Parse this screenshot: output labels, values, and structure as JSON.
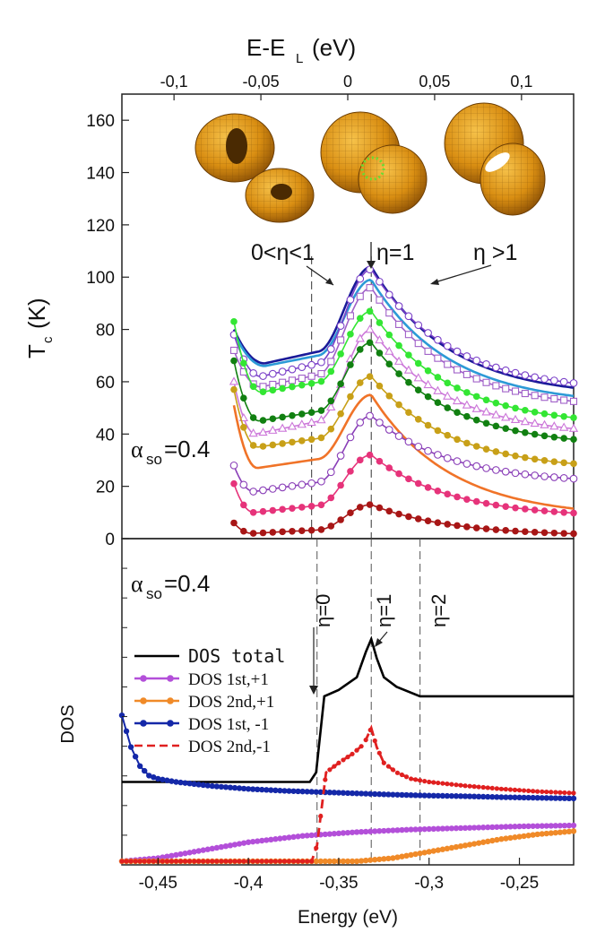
{
  "figure": {
    "top_axis_title": "E-E",
    "top_axis_title_sub": "L",
    "top_axis_title_unit": "(eV)",
    "top_ticks": [
      "-0,1",
      "-0,05",
      "0",
      "0,05",
      "0,1"
    ],
    "top_tick_values": [
      -0.1,
      -0.05,
      0,
      0.05,
      0.1
    ],
    "top_axis_range": [
      -0.13,
      0.13
    ]
  },
  "chart_data": [
    {
      "type": "line",
      "panel": "Tc",
      "title": "",
      "ylabel_main": "T",
      "ylabel_sub": "c",
      "ylabel_unit": "(K)",
      "alpha_label": "α",
      "alpha_sub": "so",
      "alpha_value": "=0.4",
      "xlim": [
        -0.47,
        -0.22
      ],
      "ylim": [
        0,
        170
      ],
      "y_ticks": [
        "0",
        "20",
        "40",
        "60",
        "80",
        "100",
        "120",
        "140",
        "160"
      ],
      "y_tick_values": [
        0,
        20,
        40,
        60,
        80,
        100,
        120,
        140,
        160
      ],
      "annotations": [
        "0<η<1",
        "η=1",
        "η >1"
      ],
      "vlines_x": [
        -0.365,
        -0.332
      ],
      "series": [
        {
          "name": "navy",
          "color": "#1a1a99",
          "marker": "none",
          "peak": 104,
          "right_end": 54,
          "dip_min": 67,
          "start": 80,
          "dip_x": -0.391
        },
        {
          "name": "lightblue",
          "color": "#2c9ad6",
          "marker": "none",
          "peak": 99,
          "right_end": 51,
          "dip_min": 66,
          "start": 79,
          "dip_x": -0.391
        },
        {
          "name": "violet-open-circle",
          "color": "#7a40c8",
          "marker": "open-circle",
          "peak": 103,
          "right_end": 56,
          "dip_min": 62,
          "start": 78,
          "dip_x": -0.393
        },
        {
          "name": "violet-open-square",
          "color": "#a060c8",
          "marker": "open-square",
          "peak": 96,
          "right_end": 49,
          "dip_min": 58,
          "start": 72,
          "dip_x": -0.393
        },
        {
          "name": "green",
          "color": "#33e633",
          "marker": "filled-circle",
          "peak": 87,
          "right_end": 43,
          "dip_min": 56,
          "start": 83,
          "dip_x": -0.393
        },
        {
          "name": "pink-open-triangle",
          "color": "#cc77d9",
          "marker": "open-triangle",
          "peak": 80,
          "right_end": 39,
          "dip_min": 40,
          "start": 60,
          "dip_x": -0.396
        },
        {
          "name": "darkgreen",
          "color": "#118011",
          "marker": "filled-circle",
          "peak": 75,
          "right_end": 35,
          "dip_min": 45,
          "start": 68,
          "dip_x": -0.394
        },
        {
          "name": "gold",
          "color": "#c8a018",
          "marker": "filled-circle",
          "peak": 62,
          "right_end": 26,
          "dip_min": 35,
          "start": 57,
          "dip_x": -0.395
        },
        {
          "name": "orange",
          "color": "#f07328",
          "marker": "none",
          "peak": 55,
          "right_end": 8,
          "dip_min": 27,
          "start": 51,
          "dip_x": -0.395
        },
        {
          "name": "purple-open-circle",
          "color": "#8a3fb8",
          "marker": "open-circle",
          "peak": 47,
          "right_end": 21,
          "dip_min": 18,
          "start": 28,
          "dip_x": -0.397
        },
        {
          "name": "pink",
          "color": "#e6337a",
          "marker": "filled-circle",
          "peak": 32,
          "right_end": 8,
          "dip_min": 10,
          "start": 21,
          "dip_x": -0.397
        },
        {
          "name": "darkred",
          "color": "#a81616",
          "marker": "filled-circle",
          "peak": 13,
          "right_end": 1,
          "dip_min": 2,
          "start": 6,
          "dip_x": -0.398
        }
      ]
    },
    {
      "type": "line",
      "panel": "DOS",
      "xlabel": "Energy (eV)",
      "ylabel": "DOS",
      "alpha_label": "α",
      "alpha_sub": "so",
      "alpha_value": "=0.4",
      "xlim": [
        -0.47,
        -0.22
      ],
      "ylim": [
        0,
        1
      ],
      "x_ticks": [
        "-0,45",
        "-0,4",
        "-0,35",
        "-0,3",
        "-0,25"
      ],
      "x_tick_values": [
        -0.45,
        -0.4,
        -0.35,
        -0.3,
        -0.25
      ],
      "annotations": [
        "η=0",
        "η=1",
        "η=2"
      ],
      "vlines_x": [
        -0.362,
        -0.332,
        -0.305
      ],
      "legend": [
        "DOS total",
        "DOS 1st,+1",
        "DOS 2nd,+1",
        "DOS 1st, -1",
        "DOS 2nd,-1"
      ],
      "series": [
        {
          "name": "DOS total",
          "color": "#000000",
          "style": "solid",
          "points": [
            [
              -0.47,
              0.25
            ],
            [
              -0.366,
              0.25
            ],
            [
              -0.3625,
              0.28
            ],
            [
              -0.358,
              0.52
            ],
            [
              -0.35,
              0.54
            ],
            [
              -0.34,
              0.58
            ],
            [
              -0.335,
              0.66
            ],
            [
              -0.332,
              0.7
            ],
            [
              -0.329,
              0.64
            ],
            [
              -0.325,
              0.58
            ],
            [
              -0.318,
              0.55
            ],
            [
              -0.305,
              0.52
            ],
            [
              -0.22,
              0.52
            ]
          ]
        },
        {
          "name": "DOS 1st,+1",
          "color": "#b34fd9",
          "style": "dots",
          "points": [
            [
              -0.47,
              0.0
            ],
            [
              -0.45,
              0.01
            ],
            [
              -0.43,
              0.03
            ],
            [
              -0.4,
              0.06
            ],
            [
              -0.37,
              0.08
            ],
            [
              -0.34,
              0.092
            ],
            [
              -0.31,
              0.1
            ],
            [
              -0.28,
              0.105
            ],
            [
              -0.25,
              0.11
            ],
            [
              -0.22,
              0.113
            ]
          ]
        },
        {
          "name": "DOS 2nd,+1",
          "color": "#f08a28",
          "style": "dots",
          "points": [
            [
              -0.47,
              0.0
            ],
            [
              -0.34,
              0.0
            ],
            [
              -0.32,
              0.01
            ],
            [
              -0.3,
              0.03
            ],
            [
              -0.28,
              0.05
            ],
            [
              -0.26,
              0.07
            ],
            [
              -0.24,
              0.085
            ],
            [
              -0.22,
              0.095
            ]
          ]
        },
        {
          "name": "DOS 1st, -1",
          "color": "#1428a8",
          "style": "dots",
          "points": [
            [
              -0.47,
              0.46
            ],
            [
              -0.465,
              0.36
            ],
            [
              -0.46,
              0.3
            ],
            [
              -0.455,
              0.27
            ],
            [
              -0.45,
              0.26
            ],
            [
              -0.44,
              0.25
            ],
            [
              -0.42,
              0.237
            ],
            [
              -0.4,
              0.228
            ],
            [
              -0.38,
              0.222
            ],
            [
              -0.36,
              0.218
            ],
            [
              -0.34,
              0.214
            ],
            [
              -0.32,
              0.21
            ],
            [
              -0.3,
              0.207
            ],
            [
              -0.28,
              0.205
            ],
            [
              -0.26,
              0.202
            ],
            [
              -0.24,
              0.2
            ],
            [
              -0.22,
              0.198
            ]
          ]
        },
        {
          "name": "DOS 2nd,-1",
          "color": "#e02020",
          "style": "dashed",
          "points": [
            [
              -0.47,
              0.0
            ],
            [
              -0.365,
              0.0
            ],
            [
              -0.362,
              0.05
            ],
            [
              -0.357,
              0.28
            ],
            [
              -0.35,
              0.31
            ],
            [
              -0.342,
              0.34
            ],
            [
              -0.336,
              0.37
            ],
            [
              -0.332,
              0.42
            ],
            [
              -0.329,
              0.36
            ],
            [
              -0.325,
              0.31
            ],
            [
              -0.318,
              0.28
            ],
            [
              -0.31,
              0.26
            ],
            [
              -0.3,
              0.25
            ],
            [
              -0.28,
              0.238
            ],
            [
              -0.26,
              0.228
            ],
            [
              -0.24,
              0.22
            ],
            [
              -0.22,
              0.215
            ]
          ]
        }
      ]
    }
  ]
}
